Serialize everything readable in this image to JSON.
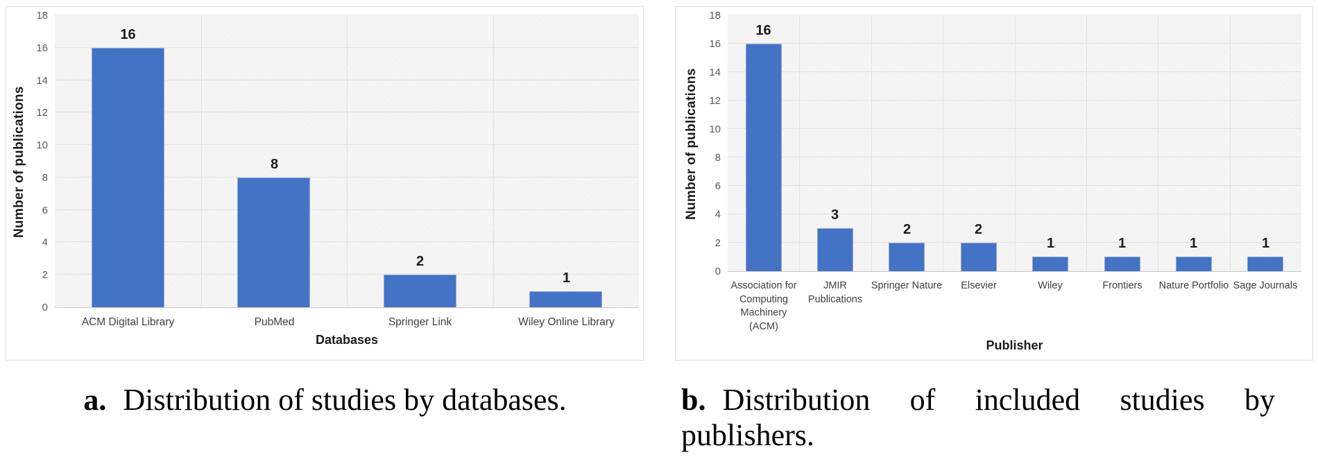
{
  "colors": {
    "bar_fill": "#4472C4",
    "bar_border": "#8faadb",
    "plot_bg": "#f2f2f2",
    "gridline": "#e2e2e2",
    "axis_line": "#c6c6c6",
    "tick_text": "#595959",
    "label_text": "#3f3f3f",
    "panel_border": "#dcdcdc"
  },
  "captions": {
    "a": {
      "label": "a.",
      "text": "Distribution of studies by databases."
    },
    "b": {
      "label": "b.",
      "text": "Distribution of included studies by publishers."
    }
  },
  "chart_data": [
    {
      "id": "databases",
      "type": "bar",
      "title": "",
      "categories": [
        "ACM Digital Library",
        "PubMed",
        "Springer Link",
        "Wiley Online Library"
      ],
      "values": [
        16,
        8,
        2,
        1
      ],
      "xlabel": "Databases",
      "ylabel": "Number of publications",
      "ylim": [
        0,
        18
      ],
      "ytick_step": 2,
      "grid": true,
      "legend": "none",
      "bar_color": "#4472C4"
    },
    {
      "id": "publishers",
      "type": "bar",
      "title": "",
      "categories": [
        "Association for Computing Machinery (ACM)",
        "JMIR Publications",
        "Springer Nature",
        "Elsevier",
        "Wiley",
        "Frontiers",
        "Nature Portfolio",
        "Sage Journals"
      ],
      "values": [
        16,
        3,
        2,
        2,
        1,
        1,
        1,
        1
      ],
      "xlabel": "Publisher",
      "ylabel": "Number of publications",
      "ylim": [
        0,
        18
      ],
      "ytick_step": 2,
      "grid": true,
      "legend": "none",
      "bar_color": "#4472C4"
    }
  ]
}
